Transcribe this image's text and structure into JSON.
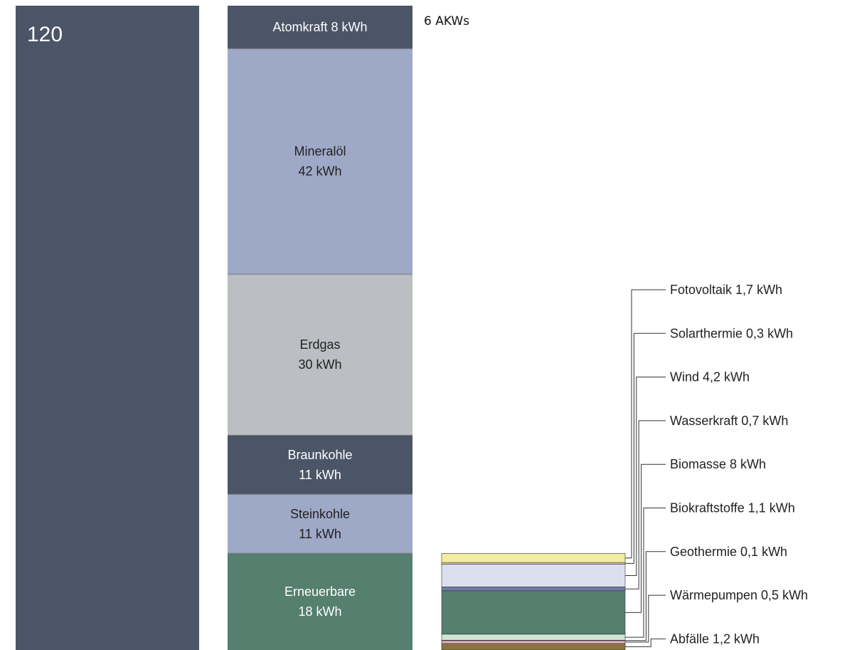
{
  "total": {
    "label": "120",
    "value": 120,
    "color": "#4a5567"
  },
  "note": "6 AKWs",
  "chart_data": {
    "type": "bar",
    "stacked": true,
    "unit": "kWh",
    "total": 120,
    "primary": [
      {
        "name": "Atomkraft",
        "value": 8,
        "label": [
          "Atomkraft 8 kWh"
        ],
        "color": "#4a5567",
        "text_color": "#ffffff"
      },
      {
        "name": "Mineralöl",
        "value": 42,
        "label": [
          "Mineralöl",
          "42 kWh"
        ],
        "color": "#9ea9c7",
        "text_color": "#222222"
      },
      {
        "name": "Erdgas",
        "value": 30,
        "label": [
          "Erdgas",
          "30 kWh"
        ],
        "color": "#bbbec2",
        "text_color": "#222222"
      },
      {
        "name": "Braunkohle",
        "value": 11,
        "label": [
          "Braunkohle",
          "11 kWh"
        ],
        "color": "#4a5567",
        "text_color": "#ffffff"
      },
      {
        "name": "Steinkohle",
        "value": 11,
        "label": [
          "Steinkohle",
          "11 kWh"
        ],
        "color": "#9ea9c7",
        "text_color": "#222222"
      },
      {
        "name": "Erneuerbare",
        "value": 18,
        "label": [
          "Erneuerbare",
          "18 kWh"
        ],
        "color": "#557f6f",
        "text_color": "#ffffff"
      }
    ],
    "renewables": [
      {
        "name": "Fotovoltaik",
        "value": 1.7,
        "label": "Fotovoltaik 1,7 kWh",
        "color": "#f2eda2"
      },
      {
        "name": "Solarthermie",
        "value": 0.3,
        "label": "Solarthermie 0,3 kWh",
        "color": "#e3d96a"
      },
      {
        "name": "Wind",
        "value": 4.2,
        "label": "Wind 4,2 kWh",
        "color": "#dbe0ef"
      },
      {
        "name": "Wasserkraft",
        "value": 0.7,
        "label": "Wasserkraft 0,7 kWh",
        "color": "#7279a8"
      },
      {
        "name": "Biomasse",
        "value": 8,
        "label": "Biomasse 8 kWh",
        "color": "#557f6f"
      },
      {
        "name": "Biokraftstoffe",
        "value": 1.1,
        "label": "Biokraftstoffe 1,1 kWh",
        "color": "#cfe5d6"
      },
      {
        "name": "Geothermie",
        "value": 0.1,
        "label": "Geothermie 0,1 kWh",
        "color": "#e8a3a3"
      },
      {
        "name": "Wärmepumpen",
        "value": 0.5,
        "label": "Wärmepumpen 0,5 kWh",
        "color": "#e8b7c6"
      },
      {
        "name": "Abfälle",
        "value": 1.2,
        "label": "Abfälle 1,2 kWh",
        "color": "#8c7440"
      }
    ]
  }
}
